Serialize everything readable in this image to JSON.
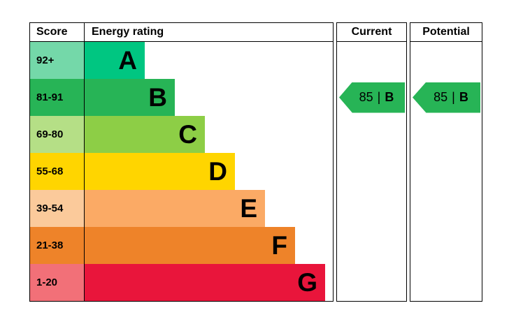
{
  "colors": {
    "background": "#ffffff",
    "border": "#000000",
    "text": "#000000"
  },
  "header": {
    "score": "Score",
    "energy_rating": "Energy rating",
    "current": "Current",
    "potential": "Potential"
  },
  "bands": [
    {
      "score": "92+",
      "letter": "A",
      "bar_color": "#00c681",
      "score_bg": "#74d8a9"
    },
    {
      "score": "81-91",
      "letter": "B",
      "bar_color": "#27b456",
      "score_bg": "#27b456"
    },
    {
      "score": "69-80",
      "letter": "C",
      "bar_color": "#8dce46",
      "score_bg": "#b5df86"
    },
    {
      "score": "55-68",
      "letter": "D",
      "bar_color": "#ffd500",
      "score_bg": "#ffd500"
    },
    {
      "score": "39-54",
      "letter": "E",
      "bar_color": "#fbaa65",
      "score_bg": "#fbca9b"
    },
    {
      "score": "21-38",
      "letter": "F",
      "bar_color": "#ee8329",
      "score_bg": "#ee8329"
    },
    {
      "score": "1-20",
      "letter": "G",
      "bar_color": "#e9153b",
      "score_bg": "#f27078"
    }
  ],
  "current": {
    "value": "85",
    "separator": "|",
    "letter": "B",
    "arrow_color": "#27b456",
    "band_index": 1
  },
  "potential": {
    "value": "85",
    "separator": "|",
    "letter": "B",
    "arrow_color": "#27b456",
    "band_index": 1
  },
  "chart_data": {
    "type": "bar",
    "title": "Energy rating",
    "columns": [
      "Score",
      "Energy rating",
      "Current",
      "Potential"
    ],
    "categories": [
      "A",
      "B",
      "C",
      "D",
      "E",
      "F",
      "G"
    ],
    "score_ranges": [
      "92+",
      "81-91",
      "69-80",
      "55-68",
      "39-54",
      "21-38",
      "1-20"
    ],
    "bar_colors": [
      "#00c681",
      "#27b456",
      "#8dce46",
      "#ffd500",
      "#fbaa65",
      "#ee8329",
      "#e9153b"
    ],
    "relative_bar_lengths": [
      86,
      129,
      172,
      215,
      258,
      301,
      344
    ],
    "current": {
      "score": 85,
      "band": "B"
    },
    "potential": {
      "score": 85,
      "band": "B"
    },
    "legend_position": "none",
    "grid": false
  }
}
